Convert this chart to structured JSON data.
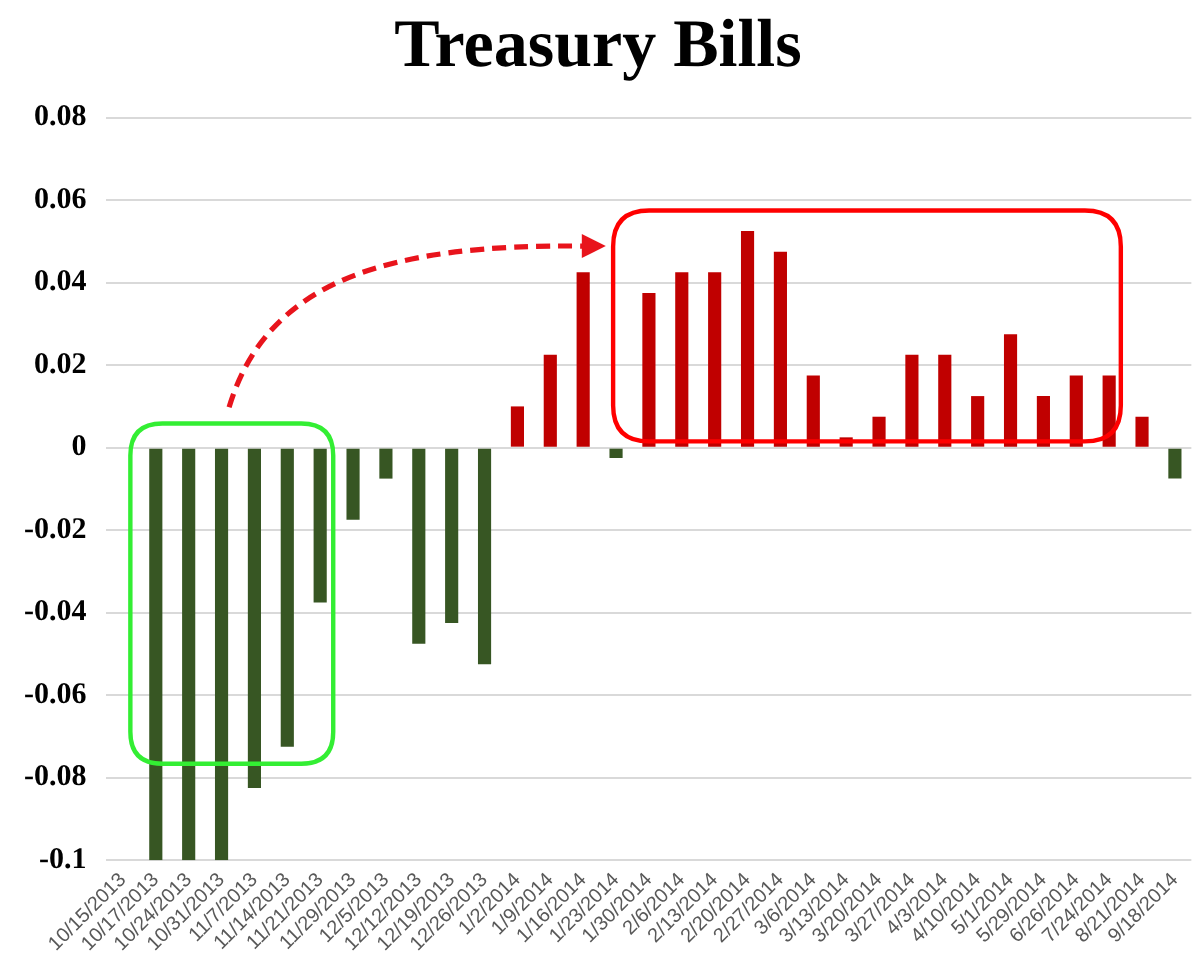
{
  "chart_data": {
    "type": "bar",
    "title": "Treasury Bills",
    "categories": [
      "10/15/2013",
      "10/17/2013",
      "10/24/2013",
      "10/31/2013",
      "11/7/2013",
      "11/14/2013",
      "11/21/2013",
      "11/29/2013",
      "12/5/2013",
      "12/12/2013",
      "12/19/2013",
      "12/26/2013",
      "1/2/2014",
      "1/9/2014",
      "1/16/2014",
      "1/23/2014",
      "1/30/2014",
      "2/6/2014",
      "2/13/2014",
      "2/20/2014",
      "2/27/2014",
      "3/6/2014",
      "3/13/2014",
      "3/20/2014",
      "3/27/2014",
      "4/3/2014",
      "4/10/2014",
      "5/1/2014",
      "5/29/2014",
      "6/26/2014",
      "7/24/2014",
      "8/21/2014",
      "9/18/2014"
    ],
    "values": [
      null,
      -0.1,
      -0.1,
      -0.1,
      -0.0825,
      -0.0725,
      -0.0375,
      -0.0175,
      -0.0075,
      -0.0475,
      -0.0425,
      -0.0525,
      0.01,
      0.0225,
      0.0425,
      -0.0025,
      0.0375,
      0.0425,
      0.0425,
      0.0525,
      0.0475,
      0.0175,
      0.0025,
      0.0075,
      0.0225,
      0.0225,
      0.0125,
      0.0275,
      0.0125,
      0.0175,
      0.0175,
      0.0075,
      -0.0075
    ],
    "colors": [
      "#c00000",
      "#375623",
      "#375623",
      "#375623",
      "#375623",
      "#375623",
      "#375623",
      "#375623",
      "#375623",
      "#375623",
      "#375623",
      "#375623",
      "#c00000",
      "#c00000",
      "#c00000",
      "#375623",
      "#c00000",
      "#c00000",
      "#c00000",
      "#c00000",
      "#c00000",
      "#c00000",
      "#c00000",
      "#c00000",
      "#c00000",
      "#c00000",
      "#c00000",
      "#c00000",
      "#c00000",
      "#c00000",
      "#c00000",
      "#c00000",
      "#375623"
    ],
    "ylim": [
      -0.1,
      0.08
    ],
    "yticks": [
      -0.1,
      -0.08,
      -0.06,
      -0.04,
      -0.02,
      0,
      0.02,
      0.04,
      0.06,
      0.08
    ],
    "grid": "y",
    "legend": false
  }
}
